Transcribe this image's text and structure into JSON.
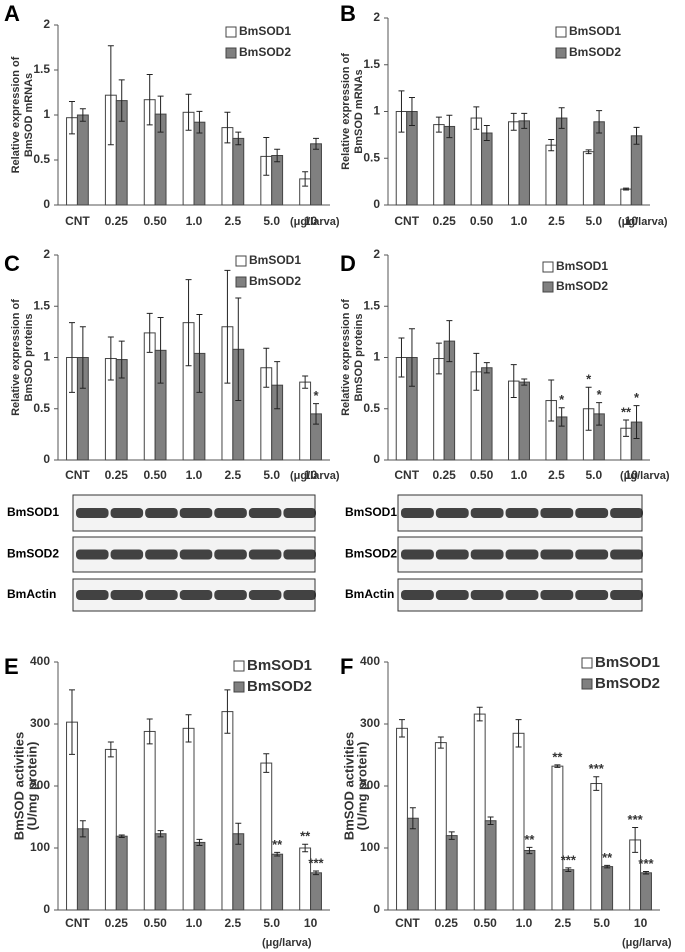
{
  "chart_data": [
    {
      "type": "bar",
      "panel": "A",
      "ylabel": [
        "Relative expression of",
        "BmSOD mRNAs"
      ],
      "xlabel": "(μg/larva)",
      "categories": [
        "CNT",
        "0.25",
        "0.50",
        "1.0",
        "2.5",
        "5.0",
        "10"
      ],
      "ylim": [
        0,
        2
      ],
      "yticks": [
        0,
        0.5,
        1,
        1.5,
        2
      ],
      "series": [
        {
          "name": "BmSOD1",
          "color": "#ffffff",
          "values": [
            0.97,
            1.22,
            1.17,
            1.03,
            0.86,
            0.54,
            0.29
          ],
          "errors": [
            0.18,
            0.55,
            0.28,
            0.2,
            0.17,
            0.21,
            0.08
          ],
          "significance": [
            null,
            null,
            null,
            null,
            null,
            null,
            null
          ]
        },
        {
          "name": "BmSOD2",
          "color": "#808080",
          "values": [
            1.0,
            1.16,
            1.01,
            0.92,
            0.74,
            0.55,
            0.68
          ],
          "errors": [
            0.07,
            0.23,
            0.2,
            0.12,
            0.07,
            0.07,
            0.06
          ],
          "significance": [
            null,
            null,
            null,
            null,
            null,
            null,
            null
          ]
        }
      ]
    },
    {
      "type": "bar",
      "panel": "B",
      "ylabel": [
        "Relative expression of",
        "BmSOD mRNAs"
      ],
      "xlabel": "(μg/larva)",
      "categories": [
        "CNT",
        "0.25",
        "0.50",
        "1.0",
        "2.5",
        "5.0",
        "10"
      ],
      "ylim": [
        0,
        2
      ],
      "yticks": [
        0,
        0.5,
        1,
        1.5,
        2
      ],
      "series": [
        {
          "name": "BmSOD1",
          "color": "#ffffff",
          "values": [
            1.0,
            0.86,
            0.93,
            0.89,
            0.64,
            0.57,
            0.17
          ],
          "errors": [
            0.22,
            0.08,
            0.12,
            0.09,
            0.06,
            0.02,
            0.01
          ],
          "significance": [
            null,
            null,
            null,
            null,
            null,
            null,
            null
          ]
        },
        {
          "name": "BmSOD2",
          "color": "#808080",
          "values": [
            1.0,
            0.84,
            0.77,
            0.9,
            0.93,
            0.89,
            0.74
          ],
          "errors": [
            0.15,
            0.12,
            0.08,
            0.08,
            0.11,
            0.12,
            0.09
          ],
          "significance": [
            null,
            null,
            null,
            null,
            null,
            null,
            null
          ]
        }
      ]
    },
    {
      "type": "bar",
      "panel": "C",
      "ylabel": [
        "Relative expression of",
        "BmSOD proteins"
      ],
      "xlabel": "(μg/larva)",
      "categories": [
        "CNT",
        "0.25",
        "0.50",
        "1.0",
        "2.5",
        "5.0",
        "10"
      ],
      "ylim": [
        0,
        2
      ],
      "yticks": [
        0,
        0.5,
        1,
        1.5,
        2
      ],
      "series": [
        {
          "name": "BmSOD1",
          "color": "#ffffff",
          "values": [
            1.0,
            0.99,
            1.24,
            1.34,
            1.3,
            0.9,
            0.76
          ],
          "errors": [
            0.34,
            0.21,
            0.19,
            0.42,
            0.55,
            0.19,
            0.06
          ],
          "significance": [
            null,
            null,
            null,
            null,
            null,
            null,
            null
          ]
        },
        {
          "name": "BmSOD2",
          "color": "#808080",
          "values": [
            1.0,
            0.98,
            1.07,
            1.04,
            1.08,
            0.73,
            0.45
          ],
          "errors": [
            0.3,
            0.18,
            0.32,
            0.38,
            0.5,
            0.23,
            0.1
          ],
          "significance": [
            null,
            null,
            null,
            null,
            null,
            null,
            "*"
          ]
        }
      ]
    },
    {
      "type": "bar",
      "panel": "D",
      "ylabel": [
        "Relative expression of",
        "BmSOD proteins"
      ],
      "xlabel": "(μg/larva)",
      "categories": [
        "CNT",
        "0.25",
        "0.50",
        "1.0",
        "2.5",
        "5.0",
        "10"
      ],
      "ylim": [
        0,
        2
      ],
      "yticks": [
        0,
        0.5,
        1,
        1.5,
        2
      ],
      "series": [
        {
          "name": "BmSOD1",
          "color": "#ffffff",
          "values": [
            1.0,
            0.99,
            0.86,
            0.77,
            0.58,
            0.5,
            0.31
          ],
          "errors": [
            0.19,
            0.15,
            0.18,
            0.16,
            0.2,
            0.21,
            0.08
          ],
          "significance": [
            null,
            null,
            null,
            null,
            null,
            "*",
            "**"
          ]
        },
        {
          "name": "BmSOD2",
          "color": "#808080",
          "values": [
            1.0,
            1.16,
            0.9,
            0.76,
            0.42,
            0.45,
            0.37
          ],
          "errors": [
            0.28,
            0.2,
            0.05,
            0.03,
            0.09,
            0.11,
            0.16
          ],
          "significance": [
            null,
            null,
            null,
            null,
            "*",
            "*",
            "*"
          ]
        }
      ]
    },
    {
      "type": "bar",
      "panel": "E",
      "ylabel": [
        "BmSOD activities",
        "(U/mg protein)"
      ],
      "xlabel": "(μg/larva)",
      "categories": [
        "CNT",
        "0.25",
        "0.50",
        "1.0",
        "2.5",
        "5.0",
        "10"
      ],
      "ylim": [
        0,
        400
      ],
      "yticks": [
        0,
        100,
        200,
        300,
        400
      ],
      "series": [
        {
          "name": "BmSOD1",
          "color": "#ffffff",
          "values": [
            303,
            259,
            288,
            293,
            320,
            237,
            100
          ],
          "errors": [
            52,
            12,
            20,
            22,
            35,
            15,
            6
          ],
          "significance": [
            null,
            null,
            null,
            null,
            null,
            null,
            "**"
          ]
        },
        {
          "name": "BmSOD2",
          "color": "#808080",
          "values": [
            131,
            119,
            123,
            109,
            123,
            90,
            60
          ],
          "errors": [
            13,
            2,
            5,
            5,
            17,
            3,
            3
          ],
          "significance": [
            null,
            null,
            null,
            null,
            null,
            "**",
            "***"
          ]
        }
      ]
    },
    {
      "type": "bar",
      "panel": "F",
      "ylabel": [
        "BmSOD activities",
        "(U/mg protein)"
      ],
      "xlabel": "(μg/larva)",
      "categories": [
        "CNT",
        "0.25",
        "0.50",
        "1.0",
        "2.5",
        "5.0",
        "10"
      ],
      "ylim": [
        0,
        400
      ],
      "yticks": [
        0,
        100,
        200,
        300,
        400
      ],
      "series": [
        {
          "name": "BmSOD1",
          "color": "#ffffff",
          "values": [
            293,
            270,
            316,
            285,
            232,
            204,
            113
          ],
          "errors": [
            14,
            9,
            11,
            22,
            2,
            11,
            20
          ],
          "significance": [
            null,
            null,
            null,
            null,
            "**",
            "***",
            "***"
          ]
        },
        {
          "name": "BmSOD2",
          "color": "#808080",
          "values": [
            148,
            120,
            144,
            96,
            65,
            70,
            60
          ],
          "errors": [
            17,
            6,
            6,
            5,
            3,
            2,
            2
          ],
          "significance": [
            null,
            null,
            null,
            "**",
            "***",
            "**",
            "***"
          ]
        }
      ]
    }
  ],
  "blots": [
    {
      "labels": [
        "BmSOD1",
        "BmSOD2",
        "BmActin"
      ]
    },
    {
      "labels": [
        "BmSOD1",
        "BmSOD2",
        "BmActin"
      ]
    }
  ]
}
